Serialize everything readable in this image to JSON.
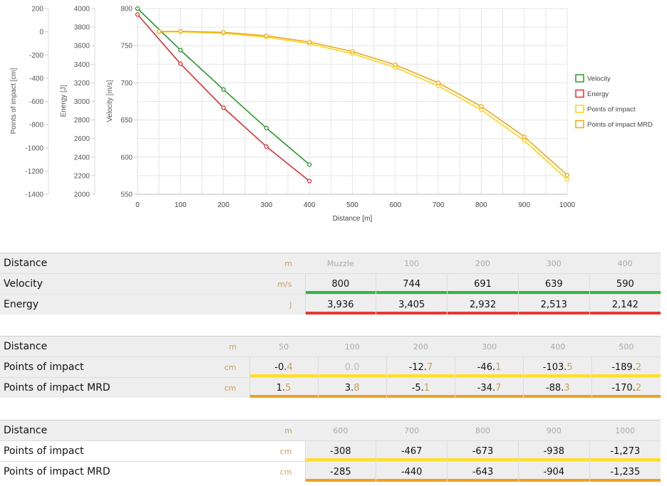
{
  "chart_data": {
    "type": "line",
    "xlabel": "Distance [m]",
    "xlim": [
      0,
      1000
    ],
    "xticks": [
      0,
      100,
      200,
      300,
      400,
      500,
      600,
      700,
      800,
      900,
      1000
    ],
    "axes": [
      {
        "label": "Points of impact [cm]",
        "ylim": [
          -1400,
          200
        ],
        "ticks": [
          200,
          0,
          -200,
          -400,
          -600,
          -800,
          -1000,
          -1200,
          -1400
        ]
      },
      {
        "label": "Energy [J]",
        "ylim": [
          2000,
          4000
        ],
        "ticks": [
          4000,
          3800,
          3600,
          3400,
          3200,
          3000,
          2800,
          2600,
          2400,
          2200,
          2000
        ]
      },
      {
        "label": "Velocity [m/s]",
        "ylim": [
          550,
          800
        ],
        "ticks": [
          800,
          750,
          700,
          650,
          600,
          550
        ]
      }
    ],
    "series": [
      {
        "name": "Velocity",
        "axis": 2,
        "color": "#2a9a2a",
        "x": [
          0,
          100,
          200,
          300,
          400
        ],
        "y": [
          800,
          744,
          691,
          639,
          590
        ]
      },
      {
        "name": "Energy",
        "axis": 1,
        "color": "#e03030",
        "x": [
          0,
          100,
          200,
          300,
          400
        ],
        "y": [
          3936,
          3405,
          2932,
          2513,
          2142
        ]
      },
      {
        "name": "Points of impact",
        "axis": 0,
        "color": "#f5d51c",
        "x": [
          50,
          100,
          200,
          300,
          400,
          500,
          600,
          700,
          800,
          900,
          1000
        ],
        "y": [
          -0.4,
          0,
          -12.7,
          -46.1,
          -103.5,
          -189.2,
          -308,
          -467,
          -673,
          -938,
          -1273
        ]
      },
      {
        "name": "Points of impact MRD",
        "axis": 0,
        "color": "#f0a818",
        "x": [
          50,
          100,
          200,
          300,
          400,
          500,
          600,
          700,
          800,
          900,
          1000
        ],
        "y": [
          1.5,
          3.8,
          -5.1,
          -34.7,
          -88.3,
          -170.2,
          -285,
          -440,
          -643,
          -904,
          -1235
        ]
      }
    ],
    "legend": "right",
    "grid": true
  },
  "tables": [
    {
      "rows": [
        {
          "label": "Distance",
          "unit": "m",
          "cells": [
            [
              "Muzzle",
              ""
            ],
            [
              "100",
              ""
            ],
            [
              "200",
              ""
            ],
            [
              "300",
              ""
            ],
            [
              "400",
              ""
            ]
          ],
          "header": true
        },
        {
          "label": "Velocity",
          "unit": "m/s",
          "cells": [
            [
              "800",
              ""
            ],
            [
              "744",
              ""
            ],
            [
              "691",
              ""
            ],
            [
              "639",
              ""
            ],
            [
              "590",
              ""
            ]
          ],
          "bar": "#2db83d"
        },
        {
          "label": "Energy",
          "unit": "J",
          "cells": [
            [
              "3,936",
              ""
            ],
            [
              "3,405",
              ""
            ],
            [
              "2,932",
              ""
            ],
            [
              "2,513",
              ""
            ],
            [
              "2,142",
              ""
            ]
          ],
          "bar": "#e53935"
        }
      ]
    },
    {
      "rows": [
        {
          "label": "Distance",
          "unit": "m",
          "cells": [
            [
              "50",
              ""
            ],
            [
              "100",
              ""
            ],
            [
              "200",
              ""
            ],
            [
              "300",
              ""
            ],
            [
              "400",
              ""
            ],
            [
              "500",
              ""
            ]
          ],
          "header": true
        },
        {
          "label": "Points of impact",
          "unit": "cm",
          "cells": [
            [
              "-0.",
              "4"
            ],
            [
              "0.0",
              ""
            ],
            [
              "-12.",
              "7"
            ],
            [
              "-46.",
              "1"
            ],
            [
              "-103.",
              "5"
            ],
            [
              "-189.",
              "2"
            ]
          ],
          "bar": "#fde02a",
          "zero": 1
        },
        {
          "label": "Points of impact MRD",
          "unit": "cm",
          "cells": [
            [
              "1.",
              "5"
            ],
            [
              "3.",
              "8"
            ],
            [
              "-5.",
              "1"
            ],
            [
              "-34.",
              "7"
            ],
            [
              "-88.",
              "3"
            ],
            [
              "-170.",
              "2"
            ]
          ],
          "bar": "#f0a020"
        }
      ]
    },
    {
      "rows": [
        {
          "label": "Distance",
          "unit": "m",
          "cells": [
            [
              "600",
              ""
            ],
            [
              "700",
              ""
            ],
            [
              "800",
              ""
            ],
            [
              "900",
              ""
            ],
            [
              "1000",
              ""
            ]
          ],
          "header": true
        },
        {
          "label": "Points of impact",
          "unit": "cm",
          "cells": [
            [
              "-308",
              ""
            ],
            [
              "-467",
              ""
            ],
            [
              "-673",
              ""
            ],
            [
              "-938",
              ""
            ],
            [
              "-1,273",
              ""
            ]
          ],
          "bar": "#fde02a"
        },
        {
          "label": "Points of impact MRD",
          "unit": "cm",
          "cells": [
            [
              "-285",
              ""
            ],
            [
              "-440",
              ""
            ],
            [
              "-643",
              ""
            ],
            [
              "-904",
              ""
            ],
            [
              "-1,235",
              ""
            ]
          ],
          "bar": "#f0a020"
        }
      ]
    }
  ]
}
